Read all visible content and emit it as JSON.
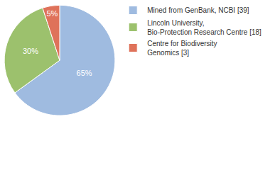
{
  "chart_data": {
    "type": "pie",
    "categories": [
      "Mined from GenBank, NCBI [39]",
      "Lincoln University, Bio-Protection Research Centre [18]",
      "Centre for Biodiversity Genomics [3]"
    ],
    "values": [
      65,
      30,
      5
    ],
    "value_labels": [
      "65%",
      "30%",
      "5%"
    ],
    "colors": [
      "#9fbbe0",
      "#9cc16d",
      "#df725a"
    ],
    "data_labels": true,
    "legend": "top right"
  }
}
